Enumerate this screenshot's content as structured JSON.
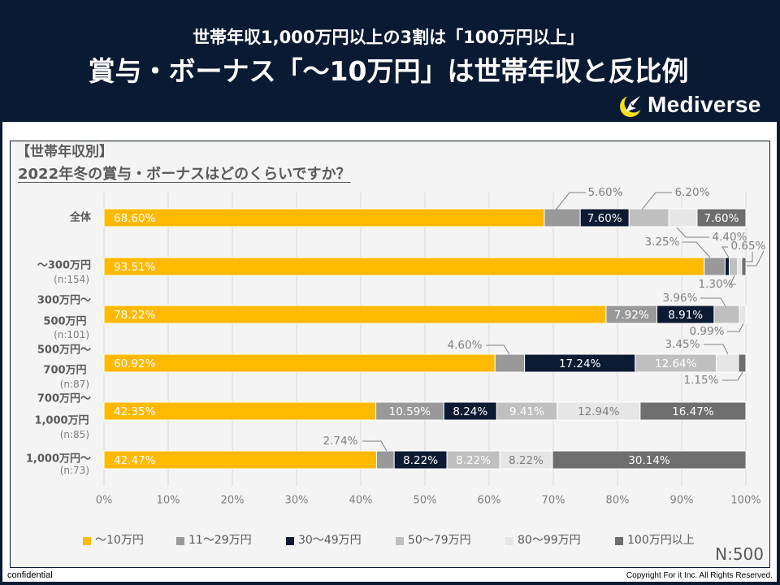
{
  "header": {
    "title_line1": "世帯年収1,000万円以上の3割は「100万円以上」",
    "title_line2": "賞与・ボーナス「〜10万円」は世帯年収と反比例",
    "brand": "Mediverse",
    "brand_icon": "crescent-rocket-logo"
  },
  "chart_data": {
    "type": "bar",
    "orientation": "horizontal",
    "stacked": true,
    "percent_stacked": true,
    "title": "【世帯年収別】",
    "subtitle": "2022年冬の賞与・ボーナスはどのくらいですか？",
    "xlabel": "",
    "ylabel": "",
    "xlim": [
      0,
      100
    ],
    "grid": true,
    "legend": "bottom",
    "x_ticks": [
      "0%",
      "10%",
      "20%",
      "30%",
      "40%",
      "50%",
      "60%",
      "70%",
      "80%",
      "90%",
      "100%"
    ],
    "categories": [
      {
        "name": "全体",
        "lines": [
          "全体"
        ],
        "n": ""
      },
      {
        "name": "〜300万円",
        "lines": [
          "〜300万円"
        ],
        "n": "(n:154)"
      },
      {
        "name": "300万円〜500万円",
        "lines": [
          "300万円〜",
          "500万円"
        ],
        "n": "(n:101)"
      },
      {
        "name": "500万円〜700万円",
        "lines": [
          "500万円〜",
          "700万円"
        ],
        "n": "(n:87)"
      },
      {
        "name": "700万円〜1,000万円",
        "lines": [
          "700万円〜",
          "1,000万円"
        ],
        "n": "(n:85)"
      },
      {
        "name": "1,000万円〜",
        "lines": [
          "1,000万円〜"
        ],
        "n": "(n:73)"
      }
    ],
    "series": [
      {
        "name": "〜10万円",
        "color": "#FFB900",
        "label_color": "#FFFFFF",
        "values": [
          68.6,
          93.51,
          78.22,
          60.92,
          42.35,
          42.47
        ]
      },
      {
        "name": "11〜29万円",
        "color": "#999999",
        "label_color": "#FFFFFF",
        "values": [
          5.6,
          3.25,
          7.92,
          4.6,
          10.59,
          2.74
        ]
      },
      {
        "name": "30〜49万円",
        "color": "#0C1A33",
        "label_color": "#FFFFFF",
        "values": [
          7.6,
          0.65,
          8.91,
          17.24,
          8.24,
          8.22
        ]
      },
      {
        "name": "50〜79万円",
        "color": "#BFBFBF",
        "label_color": "#FFFFFF",
        "values": [
          6.2,
          1.3,
          3.96,
          12.64,
          9.41,
          8.22
        ]
      },
      {
        "name": "80〜99万円",
        "color": "#E6E6E6",
        "label_color": "#7F7F7F",
        "values": [
          4.4,
          0.65,
          0.99,
          3.45,
          12.94,
          8.22
        ]
      },
      {
        "name": "100万円以上",
        "color": "#6E6E6E",
        "label_color": "#FFFFFF",
        "values": [
          7.6,
          0.65,
          0.0,
          1.15,
          16.47,
          30.14
        ]
      }
    ],
    "sample_size": "N:500"
  },
  "footer": {
    "left": "confidential",
    "right": "Copyright For it Inc. All Rights Reserved."
  }
}
